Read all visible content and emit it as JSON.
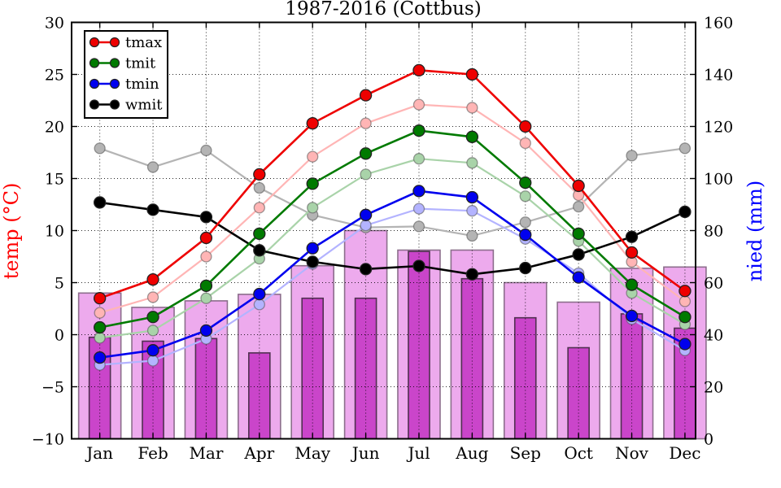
{
  "title": "1987-2016 (Cottbus)",
  "chart_data": {
    "type": "line+bar",
    "title": "1987-2016 (Cottbus)",
    "categories": [
      "Jan",
      "Feb",
      "Mar",
      "Apr",
      "May",
      "Jun",
      "Jul",
      "Aug",
      "Sep",
      "Oct",
      "Nov",
      "Dec"
    ],
    "left_axis": {
      "label": "temp (°C)",
      "color": "#ff0000",
      "min": -10,
      "max": 30,
      "ticks": [
        -10,
        -5,
        0,
        5,
        10,
        15,
        20,
        25,
        30
      ]
    },
    "right_axis": {
      "label": "nied (mm)",
      "color": "#0000ff",
      "min": 0,
      "max": 160,
      "ticks": [
        0,
        20,
        40,
        60,
        80,
        100,
        120,
        140,
        160
      ]
    },
    "grid": "dotted, horizontal at every 5 °C and vertical at every month",
    "legend": {
      "position": "upper left",
      "entries": [
        "tmax",
        "tmit",
        "tmin",
        "wmit"
      ]
    },
    "series": [
      {
        "name": "wmit_ref",
        "color": "#b4b4b4",
        "faded": true,
        "axis": "left",
        "values": [
          17.9,
          16.1,
          17.7,
          14.1,
          11.5,
          10.3,
          10.4,
          9.5,
          10.8,
          12.3,
          17.2,
          17.9
        ]
      },
      {
        "name": "tmax_ref",
        "color": "#ffb5b5",
        "faded": true,
        "axis": "left",
        "values": [
          2.1,
          3.6,
          7.5,
          12.2,
          17.1,
          20.3,
          22.1,
          21.8,
          18.4,
          13.4,
          7.0,
          3.2
        ]
      },
      {
        "name": "tmit_ref",
        "color": "#a9d3a9",
        "faded": true,
        "axis": "left",
        "values": [
          -0.3,
          0.4,
          3.5,
          7.3,
          12.2,
          15.4,
          16.9,
          16.5,
          13.3,
          9.0,
          4.0,
          1.0
        ]
      },
      {
        "name": "tmin_ref",
        "color": "#b3b3ff",
        "faded": true,
        "axis": "left",
        "values": [
          -2.9,
          -2.5,
          -0.4,
          2.9,
          6.8,
          10.5,
          12.1,
          11.9,
          9.2,
          5.9,
          1.5,
          -1.5
        ]
      },
      {
        "name": "wmit",
        "color": "#000000",
        "faded": false,
        "axis": "left",
        "values": [
          12.7,
          12.0,
          11.3,
          8.1,
          7.0,
          6.3,
          6.6,
          5.8,
          6.4,
          7.7,
          9.4,
          11.8
        ]
      },
      {
        "name": "tmax",
        "color": "#ee0000",
        "faded": false,
        "axis": "left",
        "values": [
          3.5,
          5.3,
          9.3,
          15.4,
          20.3,
          23.0,
          25.4,
          25.0,
          20.0,
          14.3,
          7.9,
          4.2
        ]
      },
      {
        "name": "tmit",
        "color": "#007a00",
        "faded": false,
        "axis": "left",
        "values": [
          0.7,
          1.7,
          4.7,
          9.7,
          14.5,
          17.4,
          19.6,
          19.0,
          14.6,
          9.7,
          4.8,
          1.7
        ]
      },
      {
        "name": "tmin",
        "color": "#0000ee",
        "faded": false,
        "axis": "left",
        "values": [
          -2.2,
          -1.5,
          0.4,
          3.9,
          8.3,
          11.5,
          13.8,
          13.2,
          9.6,
          5.5,
          1.8,
          -0.9
        ]
      }
    ],
    "bars": {
      "axis": "right",
      "wide": {
        "name": "nied_wide",
        "color": "#edaaed",
        "edge": "#8c6e8c",
        "values": [
          56,
          50.5,
          53,
          55.5,
          66.5,
          80,
          72.5,
          72.5,
          60,
          52.5,
          65.5,
          66
        ]
      },
      "narrow": {
        "name": "nied_narrow",
        "color": "#ca45ca",
        "edge": "#503050",
        "values": [
          39,
          37.5,
          38.5,
          33,
          54,
          54,
          72,
          61.5,
          46.5,
          35,
          48,
          42.5
        ]
      }
    }
  }
}
